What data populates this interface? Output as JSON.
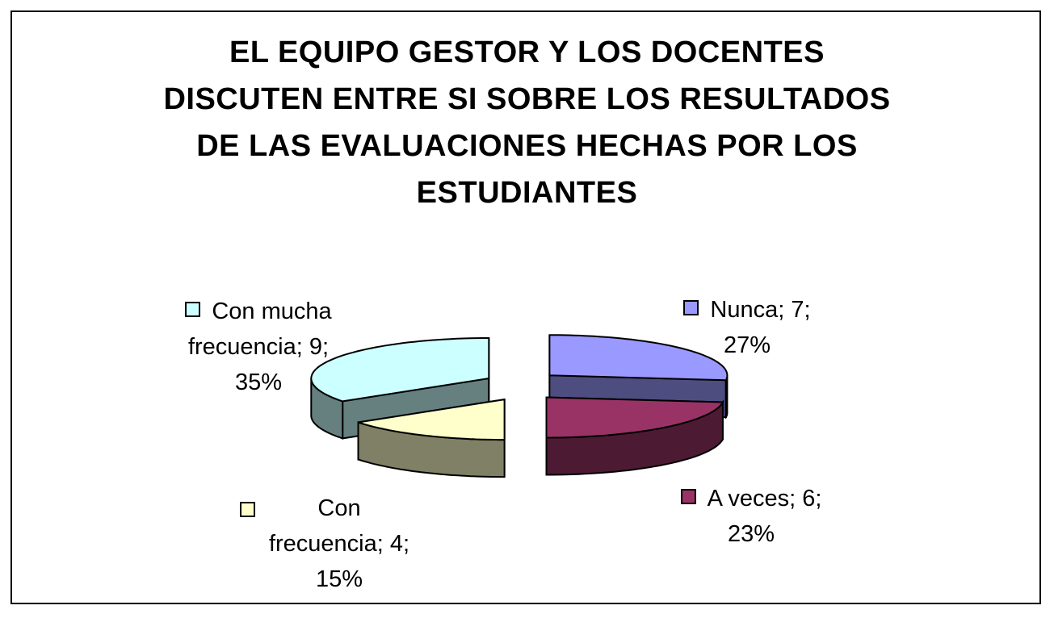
{
  "chart_data": {
    "type": "pie",
    "style": "3d-exploded",
    "title_lines": [
      "EL EQUIPO GESTOR Y LOS DOCENTES",
      "DISCUTEN ENTRE SI SOBRE LOS RESULTADOS",
      "DE LAS EVALUACIONES HECHAS POR LOS",
      "ESTUDIANTES"
    ],
    "slices": [
      {
        "label": "Nunca",
        "value": 7,
        "percent": "27%",
        "color": "#9999ff",
        "side_color": "#4d4d80"
      },
      {
        "label": "A veces",
        "value": 6,
        "percent": "23%",
        "color": "#993366",
        "side_color": "#4d1a33"
      },
      {
        "label": "Con frecuencia",
        "value": 4,
        "percent": "15%",
        "color": "#ffffcc",
        "side_color": "#808066"
      },
      {
        "label": "Con mucha frecuencia",
        "value": 9,
        "percent": "35%",
        "color": "#ccffff",
        "side_color": "#668080"
      }
    ],
    "data_labels": [
      {
        "line1": "Nunca; 7;",
        "line2": "27%"
      },
      {
        "line1": "A veces; 6;",
        "line2": "23%"
      },
      {
        "line1": "Con",
        "line2": "frecuencia; 4;",
        "line3": "15%"
      },
      {
        "line1": "Con mucha",
        "line2": "frecuencia; 9;",
        "line3": "35%"
      }
    ]
  }
}
